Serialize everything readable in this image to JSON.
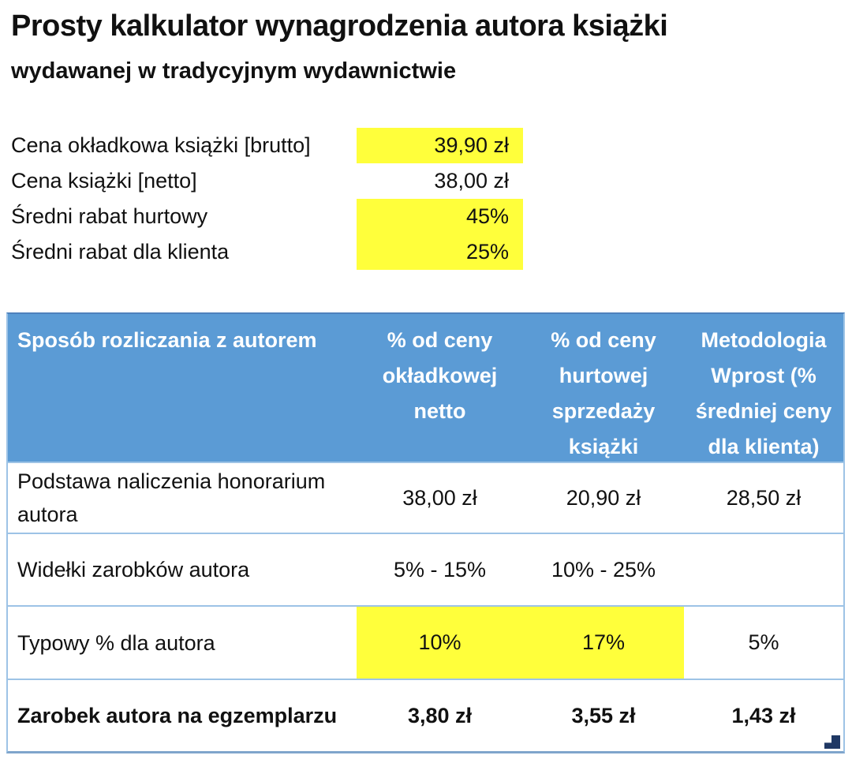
{
  "header": {
    "title": "Prosty kalkulator wynagrodzenia autora książki",
    "subtitle": "wydawanej w tradycyjnym wydawnictwie"
  },
  "params": {
    "rows": [
      {
        "label": "Cena okładkowa książki [brutto]",
        "value": "39,90 zł",
        "highlighted": true
      },
      {
        "label": "Cena książki [netto]",
        "value": "38,00 zł",
        "highlighted": false
      },
      {
        "label": "Średni rabat hurtowy",
        "value": "45%",
        "highlighted": true
      },
      {
        "label": "Średni rabat dla klienta",
        "value": "25%",
        "highlighted": true
      }
    ]
  },
  "table": {
    "columns": [
      "Sposób rozliczania z autorem",
      "% od ceny\nokładkowej\nnetto",
      "% od ceny\nhurtowej\nsprzedaży\nksiążki",
      "Metodologia\nWprost (%\nśredniej ceny\ndla klienta)"
    ],
    "rows": [
      {
        "label": "Podstawa naliczenia honorarium autora",
        "values": [
          "38,00 zł",
          "20,90 zł",
          "28,50 zł"
        ]
      },
      {
        "label": "Widełki zarobków autora",
        "values": [
          "5% - 15%",
          "10% - 25%",
          ""
        ]
      },
      {
        "label": "Typowy % dla autora",
        "values": [
          "10%",
          "17%",
          "5%"
        ]
      },
      {
        "label": "Zarobek autora na egzemplarzu",
        "values": [
          "3,80 zł",
          "3,55 zł",
          "1,43 zł"
        ]
      }
    ]
  },
  "colors": {
    "header_blue": "#5B9BD5",
    "highlight_yellow": "#FFFF3B",
    "border_blue": "#9DC3E6",
    "handle_navy": "#1F3864"
  }
}
